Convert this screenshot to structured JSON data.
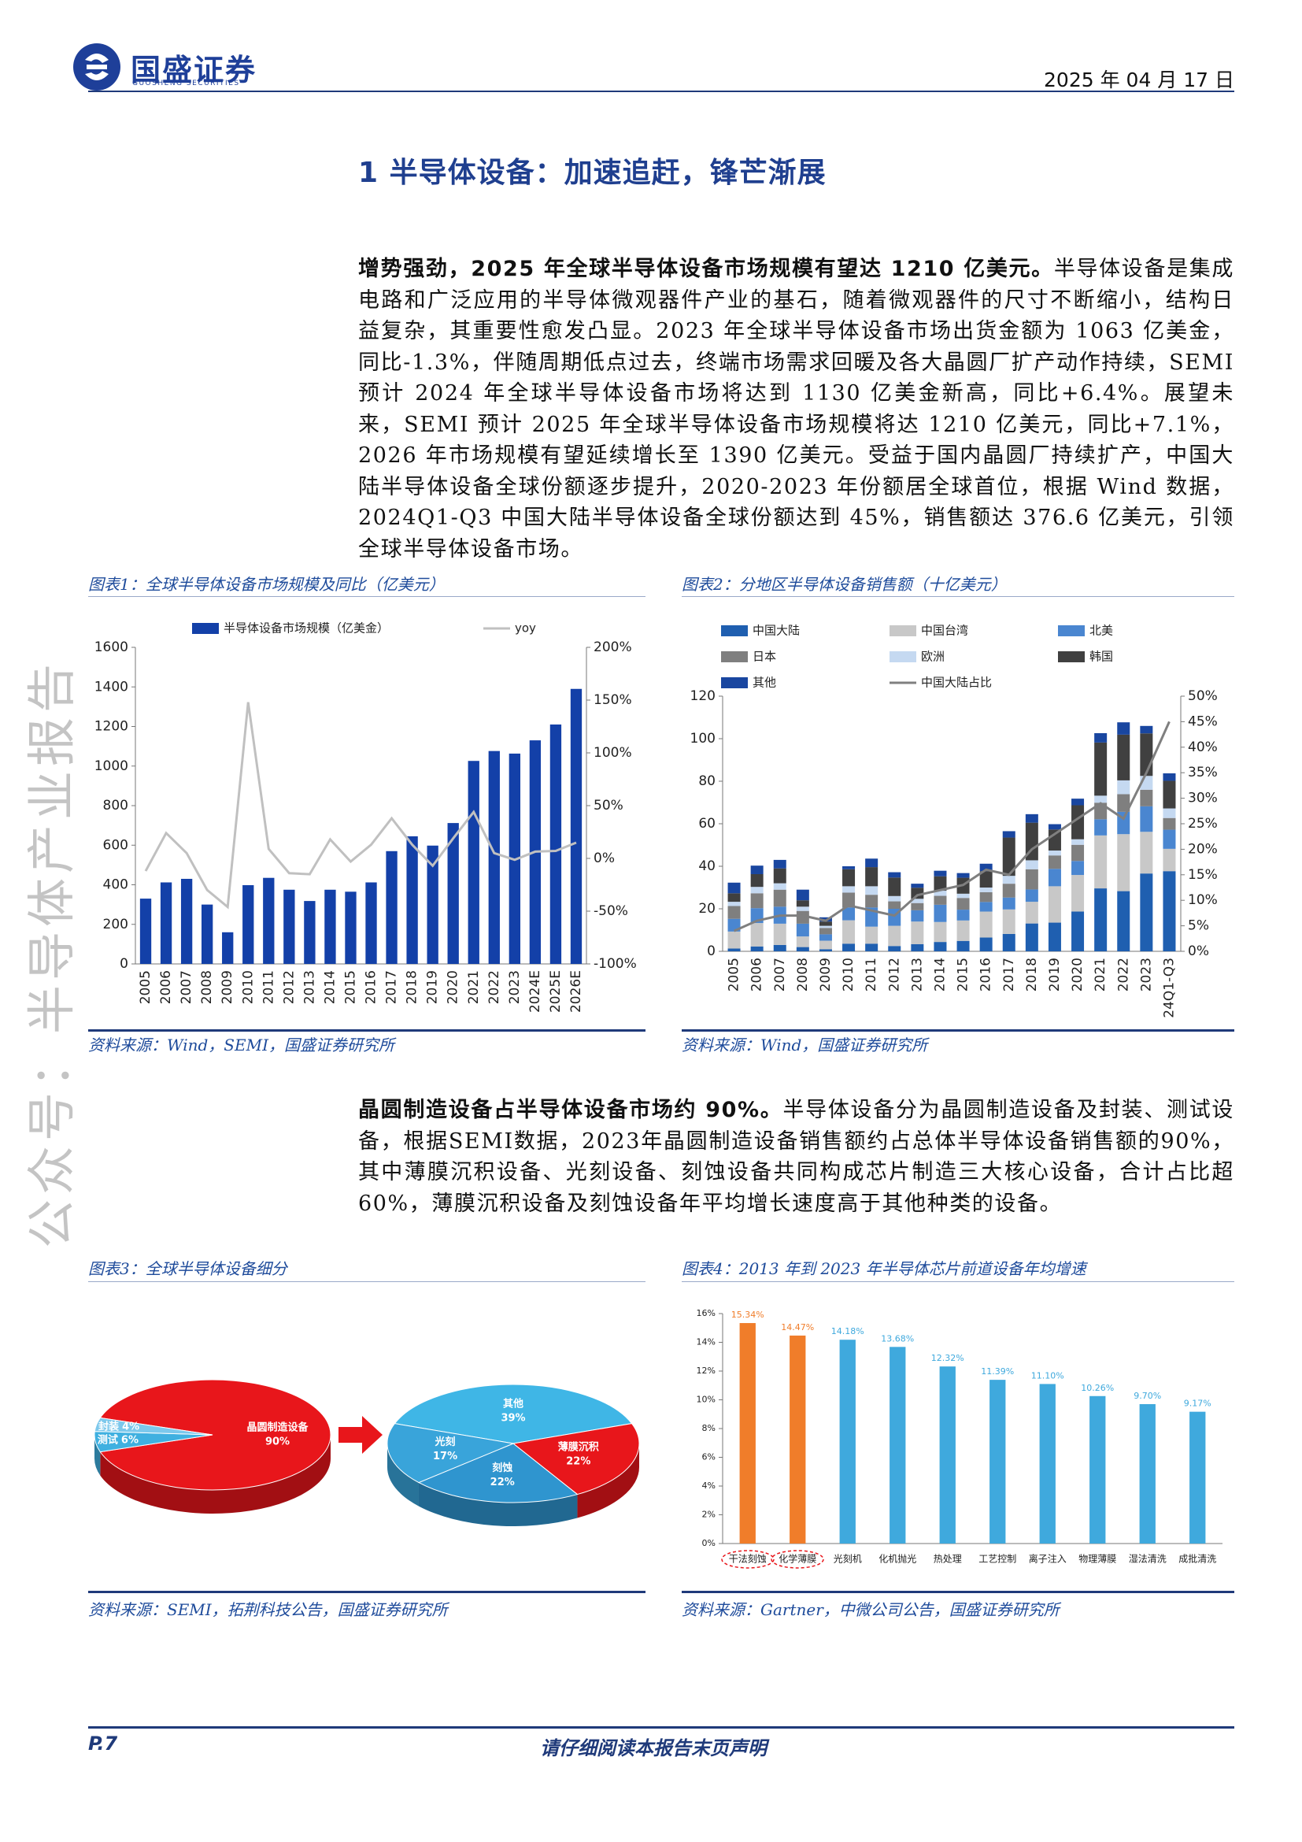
{
  "header": {
    "brand": "国盛证券",
    "brand_en": "GUOSHENG SECURITIES",
    "date": "2025 年 04 月 17 日"
  },
  "watermark": "公众号：半导体产业报告",
  "section_title": "1 半导体设备：加速追赶，锋芒渐展",
  "paragraphs": [
    {
      "lead": "增势强劲，2025 年全球半导体设备市场规模有望达 1210 亿美元。",
      "body": "半导体设备是集成电路和广泛应用的半导体微观器件产业的基石，随着微观器件的尺寸不断缩小，结构日益复杂，其重要性愈发凸显。2023 年全球半导体设备市场出货金额为 1063 亿美金，同比-1.3%，伴随周期低点过去，终端市场需求回暖及各大晶圆厂扩产动作持续，SEMI 预计 2024 年全球半导体设备市场将达到 1130 亿美金新高，同比+6.4%。展望未来，SEMI 预计 2025 年全球半导体设备市场规模将达 1210 亿美元，同比+7.1%，2026 年市场规模有望延续增长至 1390 亿美元。受益于国内晶圆厂持续扩产，中国大陆半导体设备全球份额逐步提升，2020-2023 年份额居全球首位，根据 Wind 数据，2024Q1-Q3 中国大陆半导体设备全球份额达到 45%，销售额达 376.6 亿美元，引领全球半导体设备市场。"
    },
    {
      "lead": "晶圆制造设备占半导体设备市场约 90%。",
      "body": "半导体设备分为晶圆制造设备及封装、测试设备，根据SEMI数据，2023年晶圆制造设备销售额约占总体半导体设备销售额的90%，其中薄膜沉积设备、光刻设备、刻蚀设备共同构成芯片制造三大核心设备，合计占比超60%，薄膜沉积设备及刻蚀设备年平均增长速度高于其他种类的设备。"
    }
  ],
  "figures": [
    {
      "caption": "图表1：全球半导体设备市场规模及同比（亿美元）",
      "source": "资料来源：Wind，SEMI，国盛证券研究所"
    },
    {
      "caption": "图表2：分地区半导体设备销售额（十亿美元）",
      "source": "资料来源：Wind，国盛证券研究所"
    },
    {
      "caption": "图表3：全球半导体设备细分",
      "source": "资料来源：SEMI，拓荆科技公告，国盛证券研究所"
    },
    {
      "caption": "图表4：2013 年到 2023 年半导体芯片前道设备年均增速",
      "source": "资料来源：Gartner，中微公司公告，国盛证券研究所"
    }
  ],
  "chart_data": [
    {
      "type": "bar",
      "categories": [
        "2005",
        "2006",
        "2007",
        "2008",
        "2009",
        "2010",
        "2011",
        "2012",
        "2013",
        "2014",
        "2015",
        "2016",
        "2017",
        "2018",
        "2019",
        "2020",
        "2021",
        "2022",
        "2023",
        "2024E",
        "2025E",
        "2026E"
      ],
      "series": [
        {
          "name": "半导体设备市场规模（亿美金）",
          "type": "bar",
          "color": "#1340a8",
          "values": [
            330,
            412,
            430,
            300,
            160,
            398,
            435,
            375,
            318,
            375,
            365,
            412,
            570,
            645,
            598,
            712,
            1026,
            1076,
            1063,
            1130,
            1210,
            1390
          ]
        },
        {
          "name": "yoy",
          "type": "line",
          "axis": "y2",
          "color": "#c0c0c0",
          "values": [
            -12,
            24,
            5,
            -30,
            -46,
            148,
            9,
            -14,
            -15,
            18,
            -3,
            13,
            38,
            13,
            -7,
            19,
            44,
            5,
            -1.3,
            6.4,
            7.1,
            14.9
          ]
        }
      ],
      "ylim": [
        0,
        1600
      ],
      "yticks": [
        0,
        200,
        400,
        600,
        800,
        1000,
        1200,
        1400,
        1600
      ],
      "y2lim": [
        -100,
        200
      ],
      "y2ticks": [
        {
          "value": -100,
          "label": "-100%"
        },
        {
          "value": -50,
          "label": "-50%"
        },
        {
          "value": 0,
          "label": "0%"
        },
        {
          "value": 50,
          "label": "50%"
        },
        {
          "value": 100,
          "label": "100%"
        },
        {
          "value": 150,
          "label": "150%"
        },
        {
          "value": 200,
          "label": "200%"
        }
      ],
      "x_label_rotation": 90
    },
    {
      "type": "bar",
      "stacked": true,
      "categories": [
        "2005",
        "2006",
        "2007",
        "2008",
        "2009",
        "2010",
        "2011",
        "2012",
        "2013",
        "2014",
        "2015",
        "2016",
        "2017",
        "2018",
        "2019",
        "2020",
        "2021",
        "2022",
        "2023",
        "24Q1-Q3"
      ],
      "series": [
        {
          "name": "中国大陆",
          "type": "bar",
          "color": "#1f5fb0",
          "values": [
            1.3,
            2.3,
            3,
            2,
            1,
            3.6,
            3.6,
            2.5,
            3.4,
            4.4,
            4.9,
            6.5,
            8.2,
            13.1,
            13.5,
            18.7,
            29.6,
            28.3,
            36.6,
            37.7
          ]
        },
        {
          "name": "中国台湾",
          "type": "bar",
          "color": "#c8c8c8",
          "values": [
            8,
            11,
            10,
            5,
            4,
            11,
            8,
            9.5,
            10.6,
            9.4,
            9.6,
            12.2,
            11.5,
            10.2,
            17.1,
            17.2,
            24.9,
            26.8,
            19.6,
            10.5
          ]
        },
        {
          "name": "北美",
          "type": "bar",
          "color": "#4a86d0",
          "values": [
            6,
            7,
            8,
            6,
            3,
            6,
            9,
            8,
            5.3,
            8.1,
            5.1,
            4.5,
            5.6,
            5.8,
            8.2,
            6.6,
            7.6,
            10.5,
            12,
            9
          ]
        },
        {
          "name": "日本",
          "type": "bar",
          "color": "#7f7f7f",
          "values": [
            6,
            7,
            8,
            6,
            3,
            7,
            6,
            3.5,
            3.4,
            4.2,
            5.5,
            4.6,
            6.5,
            9.5,
            6.3,
            7.6,
            7.8,
            8.3,
            7.8,
            5.5
          ]
        },
        {
          "name": "欧洲",
          "type": "bar",
          "color": "#c5d9f1",
          "values": [
            2,
            3,
            3,
            2,
            1,
            3,
            4,
            2.5,
            2,
            2.4,
            2,
            2.2,
            3.7,
            4.2,
            2.3,
            2.6,
            3.3,
            6.5,
            6.5,
            4.5
          ]
        },
        {
          "name": "韩国",
          "type": "bar",
          "color": "#404040",
          "values": [
            4,
            6,
            7,
            3,
            2,
            8,
            9,
            8.7,
            5.2,
            6.8,
            7.5,
            7.7,
            18,
            17.7,
            9.9,
            16,
            25,
            21.5,
            20,
            13
          ]
        },
        {
          "name": "其他",
          "type": "bar",
          "color": "#1946a0",
          "values": [
            5,
            4,
            4,
            5,
            2,
            1.4,
            4,
            2.5,
            1.9,
            2.6,
            2.2,
            3.5,
            3,
            4,
            2.5,
            3.1,
            4.4,
            5.8,
            3.5,
            3.5
          ]
        },
        {
          "name": "中国大陆占比",
          "type": "line",
          "axis": "y2",
          "color": "#7f7f7f",
          "values": [
            4,
            6,
            7,
            7,
            6,
            9,
            8,
            7,
            11,
            12,
            13,
            16,
            15,
            20,
            23,
            26,
            29,
            26,
            35,
            45
          ]
        }
      ],
      "ylim": [
        0,
        120
      ],
      "yticks": [
        0,
        20,
        40,
        60,
        80,
        100,
        120
      ],
      "y2lim": [
        0,
        50
      ],
      "y2ticks": [
        {
          "value": 0,
          "label": "0%"
        },
        {
          "value": 5,
          "label": "5%"
        },
        {
          "value": 10,
          "label": "10%"
        },
        {
          "value": 15,
          "label": "15%"
        },
        {
          "value": 20,
          "label": "20%"
        },
        {
          "value": 25,
          "label": "25%"
        },
        {
          "value": 30,
          "label": "30%"
        },
        {
          "value": 35,
          "label": "35%"
        },
        {
          "value": 40,
          "label": "40%"
        },
        {
          "value": 45,
          "label": "45%"
        },
        {
          "value": 50,
          "label": "50%"
        }
      ],
      "x_label_rotation": 90
    },
    {
      "type": "pie",
      "categories": [
        "晶圆制造设备",
        "测试",
        "封装"
      ],
      "values": [
        90,
        6,
        4
      ],
      "value_labels": [
        "90%",
        "6%",
        "4%"
      ],
      "colors": [
        "#e8161b",
        "#3fb0e0",
        "#7cc8ec"
      ]
    },
    {
      "type": "pie",
      "categories": [
        "其他",
        "薄膜沉积",
        "刻蚀",
        "光刻"
      ],
      "values": [
        39,
        22,
        22,
        17
      ],
      "value_labels": [
        "39%",
        "22%",
        "22%",
        "17%"
      ],
      "colors": [
        "#3fb6e6",
        "#e8161b",
        "#2f95cf",
        "#39a4da"
      ]
    },
    {
      "type": "bar",
      "categories": [
        "干法刻蚀",
        "化学薄膜",
        "光刻机",
        "化机抛光",
        "热处理",
        "工艺控制",
        "离子注入",
        "物理薄膜",
        "湿法清洗",
        "成批清洗"
      ],
      "values": [
        15.34,
        14.47,
        14.18,
        13.68,
        12.32,
        11.39,
        11.1,
        10.26,
        9.7,
        9.17
      ],
      "value_labels": [
        "15.34%",
        "14.47%",
        "14.18%",
        "13.68%",
        "12.32%",
        "11.39%",
        "11.10%",
        "10.26%",
        "9.70%",
        "9.17%"
      ],
      "colors": [
        "#f07d2a",
        "#f07d2a",
        "#3fa9dd",
        "#3fa9dd",
        "#3fa9dd",
        "#3fa9dd",
        "#3fa9dd",
        "#3fa9dd",
        "#3fa9dd",
        "#3fa9dd"
      ],
      "ylim": [
        0,
        16
      ],
      "yticks": [
        {
          "value": 0,
          "label": "0%"
        },
        {
          "value": 2,
          "label": "2%"
        },
        {
          "value": 4,
          "label": "4%"
        },
        {
          "value": 6,
          "label": "6%"
        },
        {
          "value": 8,
          "label": "8%"
        },
        {
          "value": 10,
          "label": "10%"
        },
        {
          "value": 12,
          "label": "12%"
        },
        {
          "value": 14,
          "label": "14%"
        },
        {
          "value": 16,
          "label": "16%"
        }
      ]
    }
  ],
  "footer": {
    "page": "P.7",
    "notice": "请仔细阅读本报告末页声明"
  }
}
